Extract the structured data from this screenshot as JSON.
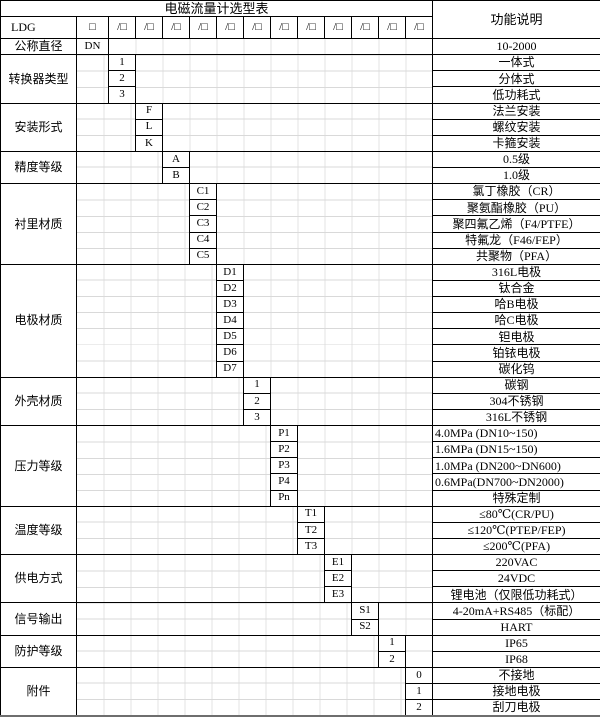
{
  "title": "电磁流量计选型表",
  "header": {
    "function_col": "功能说明",
    "model_prefix": "LDG",
    "first_box": "□",
    "slot_box": "/□",
    "slot_count": 12
  },
  "groups": [
    {
      "label": "公称直径",
      "col": 2,
      "options": [
        {
          "code": "DN",
          "desc": "10-2000"
        }
      ]
    },
    {
      "label": "转换器类型",
      "col": 3,
      "options": [
        {
          "code": "1",
          "desc": "一体式"
        },
        {
          "code": "2",
          "desc": "分体式"
        },
        {
          "code": "3",
          "desc": "低功耗式"
        }
      ]
    },
    {
      "label": "安装形式",
      "col": 4,
      "options": [
        {
          "code": "F",
          "desc": "法兰安装"
        },
        {
          "code": "L",
          "desc": "螺纹安装"
        },
        {
          "code": "K",
          "desc": "卡箍安装"
        }
      ]
    },
    {
      "label": "精度等级",
      "col": 5,
      "options": [
        {
          "code": "A",
          "desc": "0.5级"
        },
        {
          "code": "B",
          "desc": "1.0级"
        }
      ]
    },
    {
      "label": "衬里材质",
      "col": 6,
      "options": [
        {
          "code": "C1",
          "desc": "氯丁橡胶（CR）"
        },
        {
          "code": "C2",
          "desc": "聚氨酯橡胶（PU）"
        },
        {
          "code": "C3",
          "desc": "聚四氟乙烯（F4/PTFE）"
        },
        {
          "code": "C4",
          "desc": "特氟龙（F46/FEP）"
        },
        {
          "code": "C5",
          "desc": "共聚物（PFA）"
        }
      ]
    },
    {
      "label": "电极材质",
      "col": 7,
      "options": [
        {
          "code": "D1",
          "desc": "316L电极"
        },
        {
          "code": "D2",
          "desc": "钛合金"
        },
        {
          "code": "D3",
          "desc": "哈B电极"
        },
        {
          "code": "D4",
          "desc": "哈C电极"
        },
        {
          "code": "D5",
          "desc": "钽电极"
        },
        {
          "code": "D6",
          "desc": "铂铱电极"
        },
        {
          "code": "D7",
          "desc": "碳化钨"
        }
      ]
    },
    {
      "label": "外壳材质",
      "col": 8,
      "options": [
        {
          "code": "1",
          "desc": "碳钢"
        },
        {
          "code": "2",
          "desc": "304不锈钢"
        },
        {
          "code": "3",
          "desc": "316L不锈钢"
        }
      ]
    },
    {
      "label": "压力等级",
      "col": 9,
      "options": [
        {
          "code": "P1",
          "desc": "4.0MPa (DN10~150)",
          "align": "left"
        },
        {
          "code": "P2",
          "desc": "1.6MPa (DN15~150)",
          "align": "left"
        },
        {
          "code": "P3",
          "desc": "1.0MPa (DN200~DN600)",
          "align": "left"
        },
        {
          "code": "P4",
          "desc": "0.6MPa(DN700~DN2000)",
          "align": "left"
        },
        {
          "code": "Pn",
          "desc": "特殊定制"
        }
      ]
    },
    {
      "label": "温度等级",
      "col": 10,
      "options": [
        {
          "code": "T1",
          "desc": "≤80℃(CR/PU)"
        },
        {
          "code": "T2",
          "desc": "≤120℃(PTEP/FEP)"
        },
        {
          "code": "T3",
          "desc": "≤200℃(PFA)"
        }
      ]
    },
    {
      "label": "供电方式",
      "col": 11,
      "options": [
        {
          "code": "E1",
          "desc": "220VAC"
        },
        {
          "code": "E2",
          "desc": "24VDC"
        },
        {
          "code": "E3",
          "desc": "锂电池（仅限低功耗式）"
        }
      ]
    },
    {
      "label": "信号输出",
      "col": 12,
      "options": [
        {
          "code": "S1",
          "desc": "4-20mA+RS485（标配）"
        },
        {
          "code": "S2",
          "desc": "HART"
        }
      ]
    },
    {
      "label": "防护等级",
      "col": 13,
      "options": [
        {
          "code": "1",
          "desc": "IP65"
        },
        {
          "code": "2",
          "desc": "IP68"
        }
      ]
    },
    {
      "label": "附件",
      "col": 14,
      "options": [
        {
          "code": "0",
          "desc": "不接地"
        },
        {
          "code": "1",
          "desc": "接地电极"
        },
        {
          "code": "2",
          "desc": "刮刀电极"
        }
      ]
    }
  ],
  "colors": {
    "border": "#000000",
    "gridline": "#d9d9d9",
    "background": "#ffffff",
    "text": "#000000",
    "bottom_edge": "#6e6e6e"
  }
}
